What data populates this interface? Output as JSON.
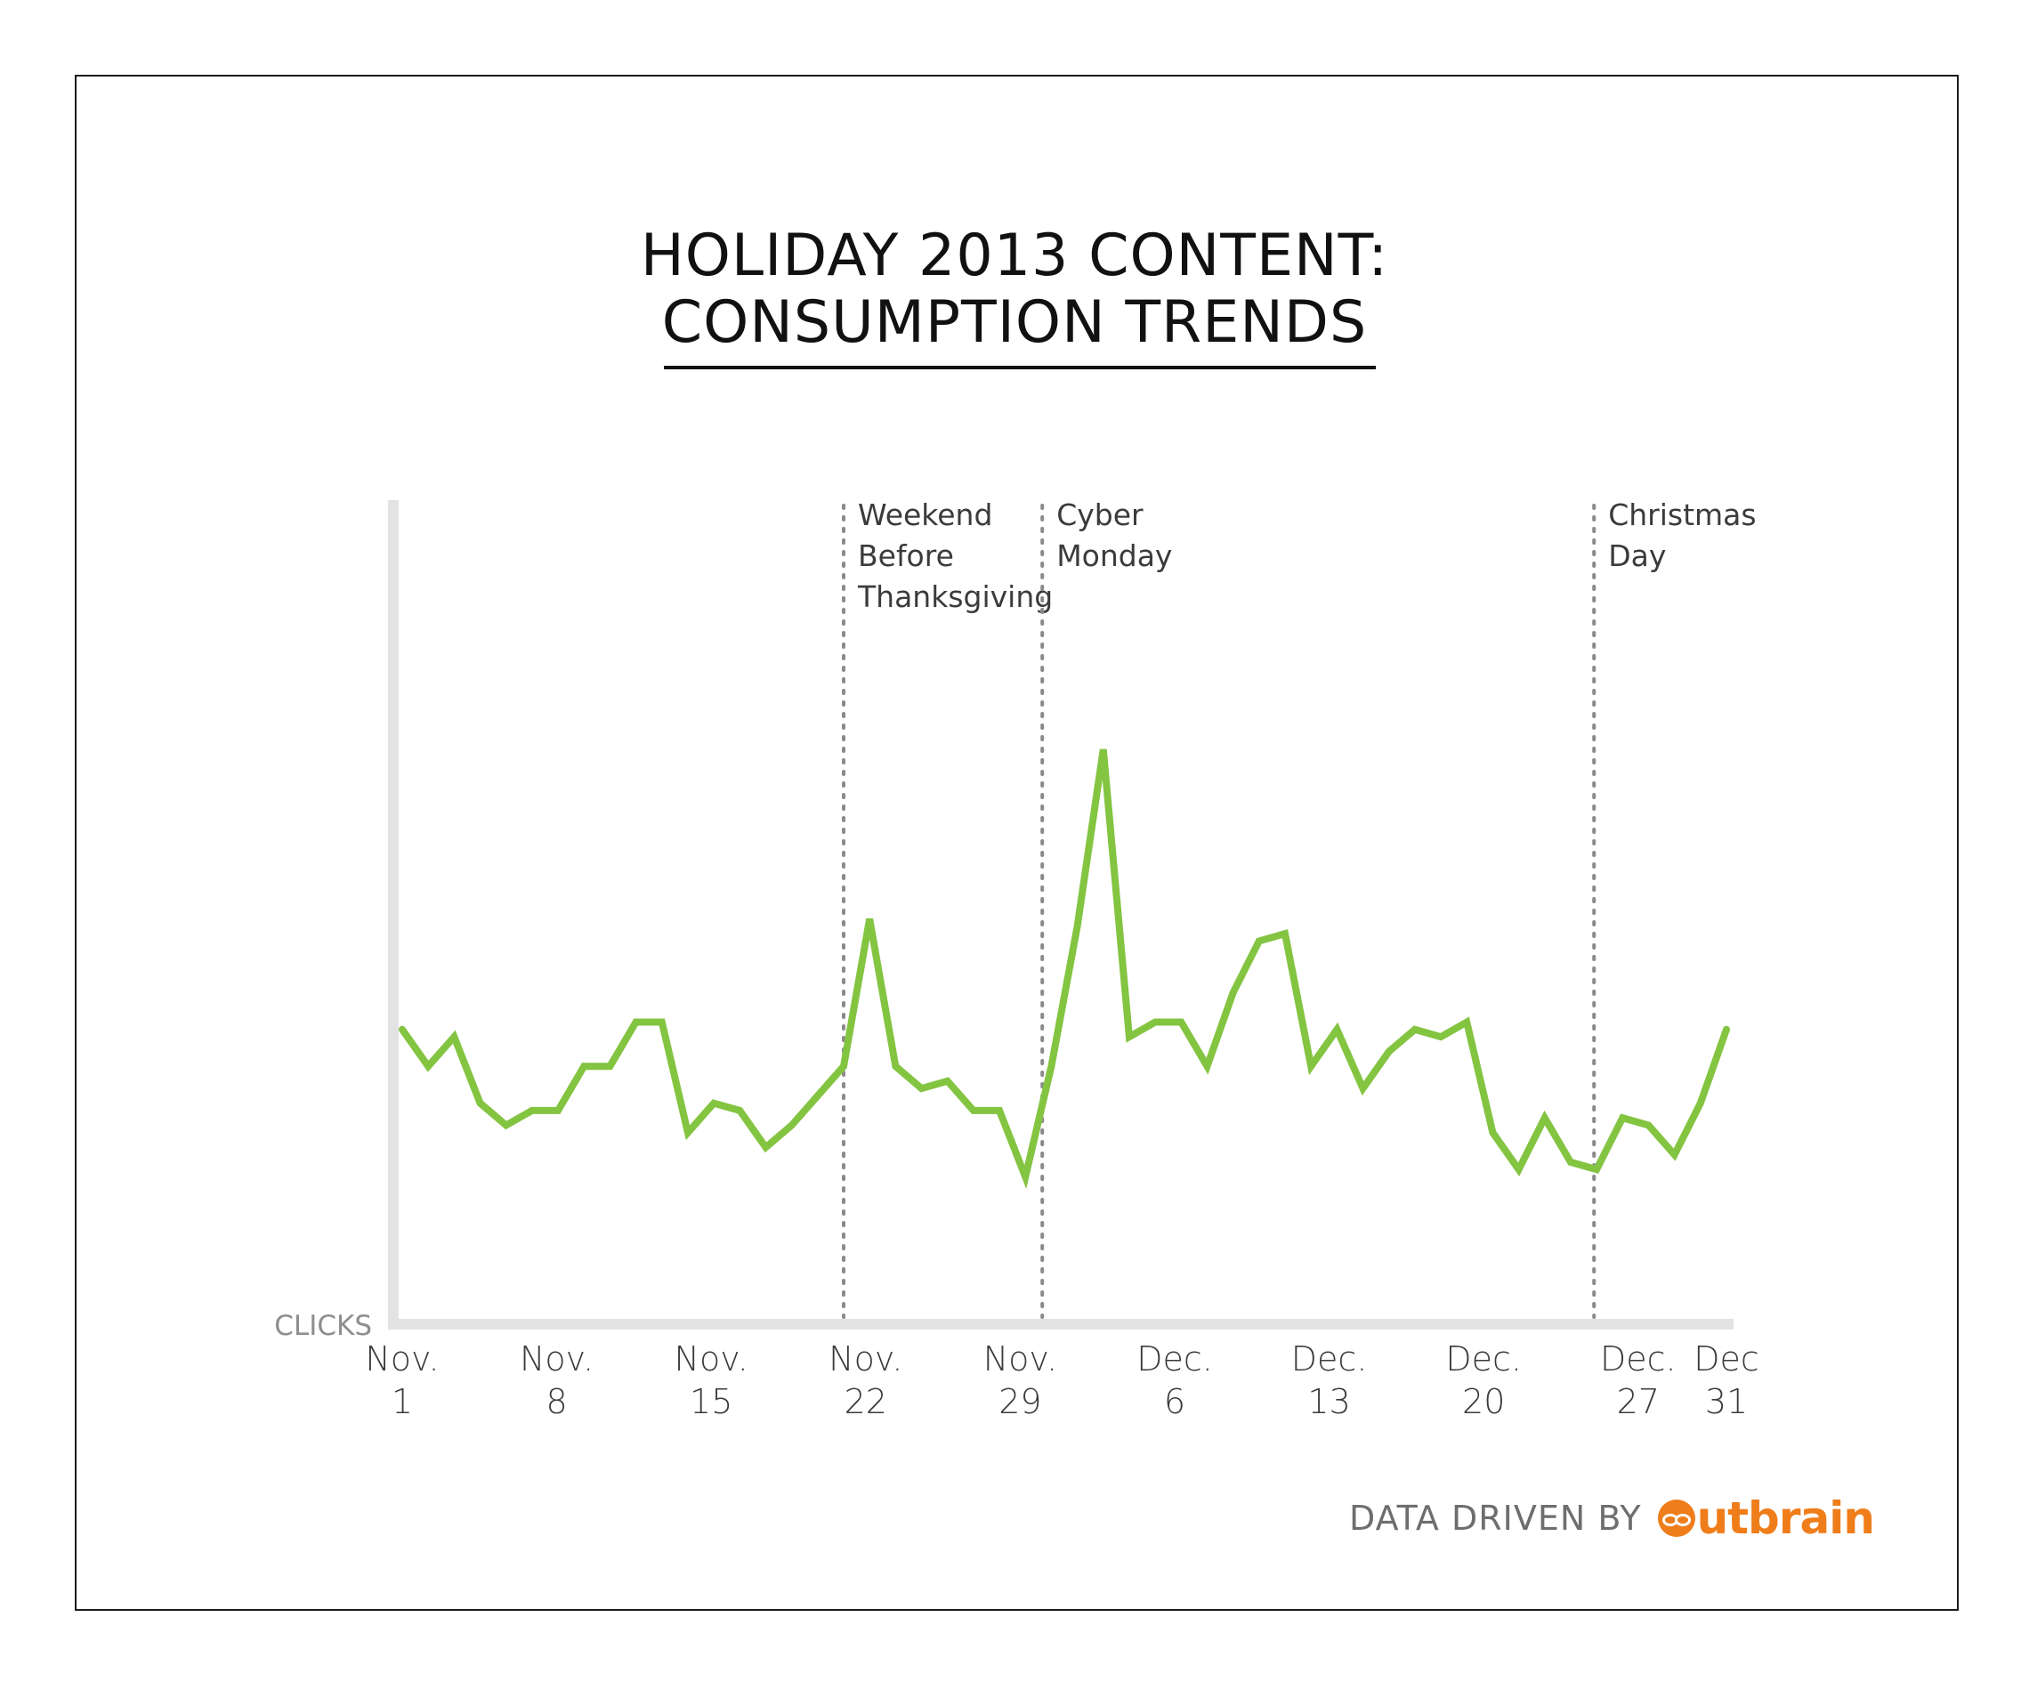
{
  "chart_data": {
    "type": "line",
    "title": "HOLIDAY 2013 CONTENT:",
    "subtitle": "CONSUMPTION TRENDS",
    "ylabel": "CLICKS",
    "xlabel": "",
    "x_tick_labels": [
      {
        "line1": "Nov.",
        "line2": "1"
      },
      {
        "line1": "Nov.",
        "line2": "8"
      },
      {
        "line1": "Nov.",
        "line2": "15"
      },
      {
        "line1": "Nov.",
        "line2": "22"
      },
      {
        "line1": "Nov.",
        "line2": "29"
      },
      {
        "line1": "Dec.",
        "line2": "6"
      },
      {
        "line1": "Dec.",
        "line2": "13"
      },
      {
        "line1": "Dec.",
        "line2": "20"
      },
      {
        "line1": "Dec.",
        "line2": "27"
      },
      {
        "line1": "Dec",
        "line2": "31"
      }
    ],
    "x_ticks_day_index": [
      0,
      7,
      14,
      21,
      28,
      35,
      42,
      49,
      56,
      60
    ],
    "xlim": [
      0,
      60
    ],
    "ylim": [
      0,
      100
    ],
    "y_ticks_shown": false,
    "grid": false,
    "line_color": "#83c441",
    "series": [
      {
        "values": [
          40,
          35,
          39,
          30,
          27,
          29,
          29,
          35,
          35,
          41,
          41,
          26,
          30,
          29,
          24,
          27,
          31,
          35,
          55,
          35,
          32,
          33,
          29,
          29,
          20,
          35,
          54,
          78,
          39,
          41,
          41,
          35,
          45,
          52,
          53,
          35,
          40,
          32,
          37,
          40,
          39,
          41,
          26,
          21,
          28,
          22,
          21,
          28,
          27,
          23,
          30,
          40
        ]
      }
    ],
    "annotations": [
      {
        "day_index": 20,
        "lines": [
          "Weekend",
          "Before",
          "Thanksgiving"
        ]
      },
      {
        "day_index": 29,
        "lines": [
          "Cyber",
          "Monday"
        ]
      },
      {
        "day_index": 54,
        "lines": [
          "Christmas",
          "Day"
        ]
      }
    ]
  },
  "footer": {
    "text": "DATA DRIVEN BY",
    "brand_text": "utbrain",
    "brand_color": "#ef7d1a",
    "brand_icon": "outbrain-logo-icon"
  }
}
